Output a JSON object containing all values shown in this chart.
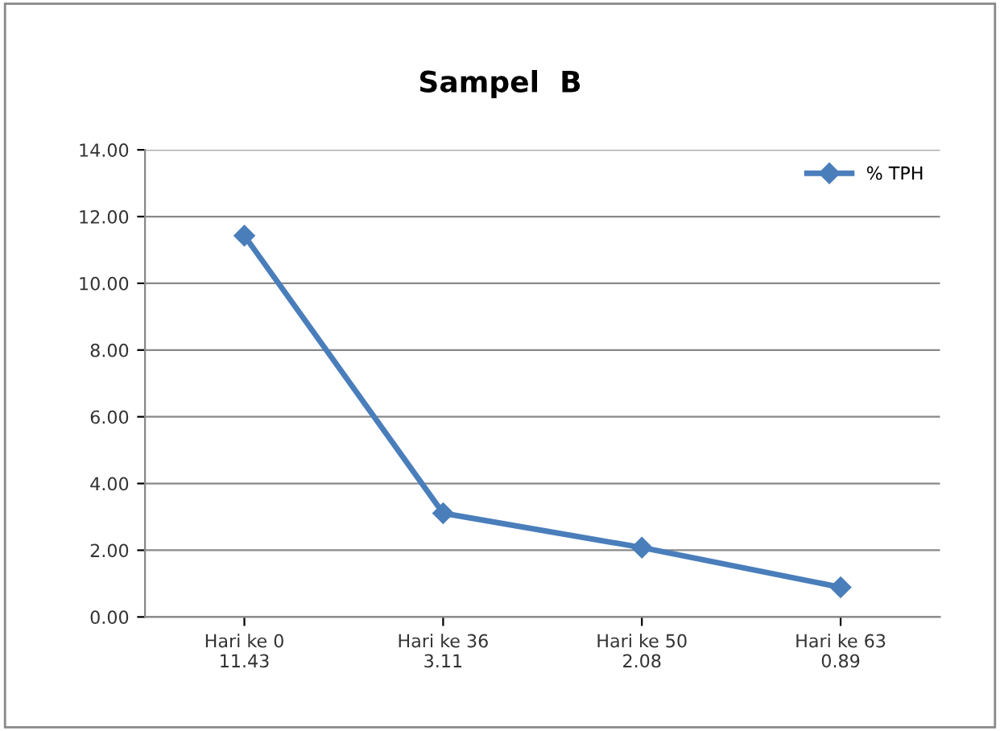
{
  "chart_data": {
    "type": "line",
    "title": "Sampel  B",
    "categories": [
      "Hari ke 0",
      "Hari ke 36",
      "Hari ke 50",
      "Hari ke 63"
    ],
    "series": [
      {
        "name": "% TPH",
        "color": "#4a7ebb",
        "values": [
          11.43,
          3.11,
          2.08,
          0.89
        ]
      }
    ],
    "data_labels": true,
    "ylim": [
      0,
      14
    ],
    "yticks": [
      {
        "value": 0,
        "label": "0.00"
      },
      {
        "value": 2,
        "label": "2.00"
      },
      {
        "value": 4,
        "label": "4.00"
      },
      {
        "value": 6,
        "label": "6.00"
      },
      {
        "value": 8,
        "label": "8.00"
      },
      {
        "value": 10,
        "label": "10.00"
      },
      {
        "value": 12,
        "label": "12.00"
      },
      {
        "value": 14,
        "label": "14.00"
      }
    ],
    "grid": "y",
    "legend": "top right",
    "marker": "diamond",
    "line_style": "solid"
  }
}
